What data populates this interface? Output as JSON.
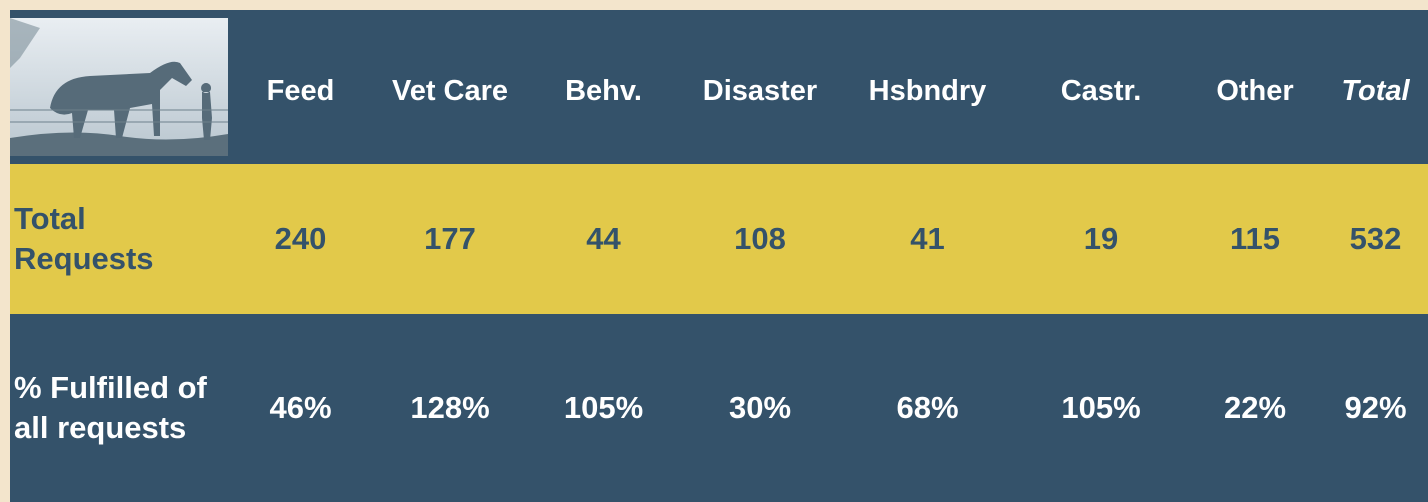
{
  "table": {
    "columns": [
      "Feed",
      "Vet Care",
      "Behv.",
      "Disaster",
      "Hsbndry",
      "Castr.",
      "Other",
      "Total"
    ],
    "rows": [
      {
        "label": "Total Requests",
        "cells": [
          "240",
          "177",
          "44",
          "108",
          "41",
          "19",
          "115",
          "532"
        ]
      },
      {
        "label": "% Fulfilled of all requests",
        "cells": [
          "46%",
          "128%",
          "105%",
          "30%",
          "68%",
          "105%",
          "22%",
          "92%"
        ]
      }
    ]
  }
}
